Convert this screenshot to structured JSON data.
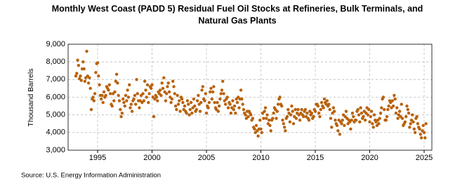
{
  "chart_data": {
    "type": "scatter",
    "title": "Monthly West Coast (PADD 5) Residual Fuel Oil Stocks at Refineries, Bulk Terminals, and",
    "title_line2": "Natural Gas Plants",
    "ylabel": "Thousand Barrels",
    "source": "Source: U.S. Energy Information Administration",
    "ylim": [
      3000,
      9000
    ],
    "yticks": [
      {
        "value": 3000,
        "label": "3,000"
      },
      {
        "value": 4000,
        "label": "4,000"
      },
      {
        "value": 5000,
        "label": "5,000"
      },
      {
        "value": 6000,
        "label": "6,000"
      },
      {
        "value": 7000,
        "label": "7,000"
      },
      {
        "value": 8000,
        "label": "8,000"
      },
      {
        "value": 9000,
        "label": "9,000"
      }
    ],
    "grid": true,
    "color": "#b8620c",
    "categories": [
      null,
      null,
      null,
      null,
      null,
      null,
      null,
      null,
      null,
      null,
      null,
      null,
      null,
      null,
      null,
      null,
      null,
      null,
      null,
      null,
      null,
      null,
      null,
      null,
      "1995",
      null,
      null,
      null,
      null,
      null,
      null,
      null,
      null,
      null,
      null,
      null,
      null,
      null,
      null,
      null,
      null,
      null,
      null,
      null,
      null,
      null,
      null,
      null,
      null,
      null,
      null,
      null,
      null,
      null,
      null,
      null,
      null,
      null,
      null,
      null,
      null,
      null,
      null,
      null,
      null,
      null,
      null,
      null,
      null,
      null,
      null,
      null,
      null,
      null,
      null,
      null,
      null,
      null,
      null,
      null,
      null,
      null,
      null,
      null,
      "2000",
      null,
      null,
      null,
      null,
      null,
      null,
      null,
      null,
      null,
      null,
      null,
      null,
      null,
      null,
      null,
      null,
      null,
      null,
      null,
      null,
      null,
      null,
      null,
      null,
      null,
      null,
      null,
      null,
      null,
      null,
      null,
      null,
      null,
      null,
      null,
      null,
      null,
      null,
      null,
      null,
      null,
      null,
      null,
      null,
      null,
      null,
      null,
      null,
      null,
      null,
      null,
      null,
      null,
      null,
      null,
      null,
      null,
      null,
      null,
      "2005",
      null,
      null,
      null,
      null,
      null,
      null,
      null,
      null,
      null,
      null,
      null,
      null,
      null,
      null,
      null,
      null,
      null,
      null,
      null,
      null,
      null,
      null,
      null,
      null,
      null,
      null,
      null,
      null,
      null,
      null,
      null,
      null,
      null,
      null,
      null,
      null,
      null,
      null,
      null,
      null,
      null,
      null,
      null,
      null,
      null,
      null,
      null,
      null,
      null,
      null,
      null,
      null,
      null,
      null,
      null,
      null,
      null,
      null,
      null,
      "2010",
      null,
      null,
      null,
      null,
      null,
      null,
      null,
      null,
      null,
      null,
      null,
      null,
      null,
      null,
      null,
      null,
      null,
      null,
      null,
      null,
      null,
      null,
      null,
      null,
      null,
      null,
      null,
      null,
      null,
      null,
      null,
      null,
      null,
      null,
      null,
      null,
      null,
      null,
      null,
      null,
      null,
      null,
      null,
      null,
      null,
      null,
      null,
      null,
      null,
      null,
      null,
      null,
      null,
      null,
      null,
      null,
      null,
      null,
      null,
      "2015",
      null,
      null,
      null,
      null,
      null,
      null,
      null,
      null,
      null,
      null,
      null,
      null,
      null,
      null,
      null,
      null,
      null,
      null,
      null,
      null,
      null,
      null,
      null,
      null,
      null,
      null,
      null,
      null,
      null,
      null,
      null,
      null,
      null,
      null,
      null,
      null,
      null,
      null,
      null,
      null,
      null,
      null,
      null,
      null,
      null,
      null,
      null,
      null,
      null,
      null,
      null,
      null,
      null,
      null,
      null,
      null,
      null,
      null,
      null,
      "2020",
      null,
      null,
      null,
      null,
      null,
      null,
      null,
      null,
      null,
      null,
      null,
      null,
      null,
      null,
      null,
      null,
      null,
      null,
      null,
      null,
      null,
      null,
      null,
      null,
      null,
      null,
      null,
      null,
      null,
      null,
      null,
      null,
      null,
      null,
      null,
      null,
      null,
      null,
      null,
      null,
      null,
      null,
      null,
      null,
      null,
      null,
      null,
      null,
      null,
      null,
      null,
      null,
      null,
      null,
      null,
      null,
      null,
      null,
      null,
      "2025",
      null,
      null
    ],
    "values": [
      7200,
      7350,
      8100,
      7800,
      7050,
      7200,
      6950,
      7600,
      8000,
      7600,
      6900,
      7100,
      8600,
      7200,
      6800,
      7100,
      6500,
      5300,
      5900,
      6000,
      5800,
      6200,
      7400,
      7900,
      7950,
      7200,
      6700,
      6100,
      5900,
      6100,
      5700,
      6300,
      6000,
      6100,
      6600,
      6500,
      6400,
      6700,
      6200,
      5600,
      5500,
      6200,
      5800,
      6300,
      6900,
      7300,
      6800,
      6100,
      5800,
      5300,
      4900,
      5100,
      5900,
      5700,
      5500,
      6100,
      5800,
      6400,
      6000,
      6700,
      5400,
      5600,
      5200,
      5800,
      5900,
      6100,
      5600,
      7000,
      6200,
      5800,
      5400,
      5800,
      6100,
      5700,
      6200,
      5800,
      6900,
      6400,
      6000,
      6700,
      5700,
      6200,
      6600,
      6500,
      6700,
      6000,
      4900,
      5900,
      6100,
      6000,
      5800,
      6300,
      6200,
      6400,
      6100,
      6800,
      6500,
      7100,
      6300,
      5800,
      6200,
      6600,
      6800,
      6300,
      6000,
      5700,
      5900,
      6900,
      6600,
      6200,
      5500,
      5300,
      6100,
      5600,
      5800,
      5200,
      6000,
      5900,
      5700,
      5300,
      5500,
      5200,
      5100,
      5800,
      5600,
      5000,
      5300,
      5700,
      5100,
      5400,
      5900,
      5500,
      5200,
      5300,
      5800,
      6100,
      5600,
      5200,
      5700,
      6400,
      6600,
      5900,
      5800,
      6200,
      5100,
      5500,
      5400,
      5700,
      6300,
      6500,
      5900,
      6300,
      6600,
      5700,
      5400,
      5300,
      5700,
      5200,
      5500,
      5900,
      6200,
      6400,
      6900,
      6200,
      5800,
      5600,
      5900,
      6000,
      5400,
      5700,
      5600,
      5100,
      5400,
      5800,
      5300,
      5500,
      5100,
      5900,
      5700,
      6000,
      5400,
      5900,
      6400,
      5900,
      5600,
      5300,
      5100,
      5000,
      4800,
      5200,
      4900,
      5200,
      5100,
      5000,
      4700,
      4800,
      4300,
      4200,
      4000,
      4400,
      4100,
      3800,
      4200,
      4700,
      4200,
      4000,
      5100,
      4800,
      5200,
      5400,
      4800,
      5000,
      4500,
      4700,
      4400,
      4100,
      4700,
      4800,
      5100,
      5400,
      5300,
      4800,
      5200,
      5600,
      5900,
      6000,
      5600,
      5500,
      4700,
      4500,
      4300,
      4100,
      4800,
      4900,
      5300,
      5100,
      4600,
      5000,
      5500,
      5200,
      4500,
      4900,
      5300,
      4800,
      5100,
      5300,
      5000,
      4700,
      5100,
      5300,
      5000,
      4900,
      5200,
      5300,
      4900,
      5100,
      4800,
      4700,
      5200,
      5000,
      5100,
      4800,
      4900,
      5300,
      5200,
      5600,
      5600,
      5500,
      5100,
      4900,
      5300,
      5700,
      5500,
      5400,
      5900,
      5700,
      5600,
      5800,
      5500,
      5600,
      5300,
      4800,
      4300,
      5100,
      5400,
      5200,
      4700,
      4500,
      4400,
      4100,
      4700,
      3900,
      4600,
      4500,
      4700,
      5000,
      4400,
      4900,
      5200,
      4800,
      4500,
      4700,
      4600,
      4200,
      4700,
      5100,
      4900,
      4600,
      4700,
      4700,
      5200,
      5300,
      5000,
      4600,
      5400,
      5100,
      4800,
      4900,
      5200,
      4700,
      5100,
      5400,
      5000,
      5300,
      4600,
      4900,
      5200,
      4500,
      4300,
      5000,
      4700,
      4600,
      4400,
      4700,
      4500,
      4800,
      5100,
      5400,
      5900,
      6000,
      5300,
      4700,
      4700,
      4900,
      5300,
      5500,
      5800,
      5700,
      5400,
      5800,
      5500,
      6100,
      5900,
      5100,
      5400,
      4800,
      5000,
      5200,
      4900,
      5600,
      4800,
      4400,
      4500,
      4600,
      4900,
      5500,
      5300,
      5100,
      4300,
      4500,
      4700,
      5000,
      4600,
      4200,
      4000,
      4800,
      4900,
      4500,
      4300,
      4200,
      3900,
      3700,
      4100,
      4400,
      4000,
      3700,
      4500
    ]
  }
}
